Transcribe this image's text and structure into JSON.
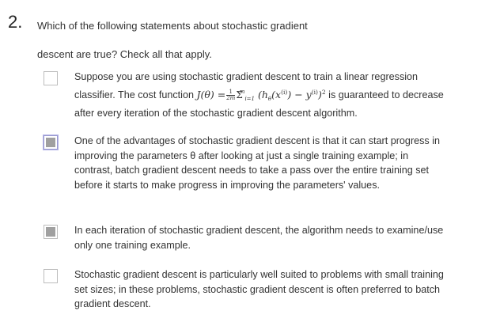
{
  "question": {
    "number": "2.",
    "text": "Which of the following statements about stochastic gradient descent are true? Check all that apply."
  },
  "options": [
    {
      "checked": false,
      "text_before": "Suppose you are using stochastic gradient descent to train a linear regression classifier. The cost function",
      "formula": {
        "lhs": "J(θ) =",
        "frac_num": "1",
        "frac_den": "2m",
        "sum_symbol": "Σ",
        "sum_sup": "m",
        "sum_sub": "i=1",
        "body_open": "(h",
        "body_sub": "θ",
        "body_x": "(x",
        "body_xsup": "(i)",
        "body_mid": ") − y",
        "body_ysup": "(i)",
        "body_close": ")",
        "square": "2"
      },
      "text_after": "is guaranteed to decrease after every iteration of the stochastic gradient descent algorithm."
    },
    {
      "checked": true,
      "text": "One of the advantages of stochastic gradient descent is that it can start progress in improving the parameters θ after looking at just a single training example; in contrast, batch gradient descent needs to take a pass over the entire training set before it starts to make progress in improving the parameters' values."
    },
    {
      "checked": true,
      "text": "In each iteration of stochastic gradient descent, the algorithm needs to examine/use only one training example."
    },
    {
      "checked": false,
      "text": "Stochastic gradient descent is particularly well suited to problems with small training set sizes; in these problems, stochastic gradient descent is often preferred to batch gradient descent."
    }
  ]
}
